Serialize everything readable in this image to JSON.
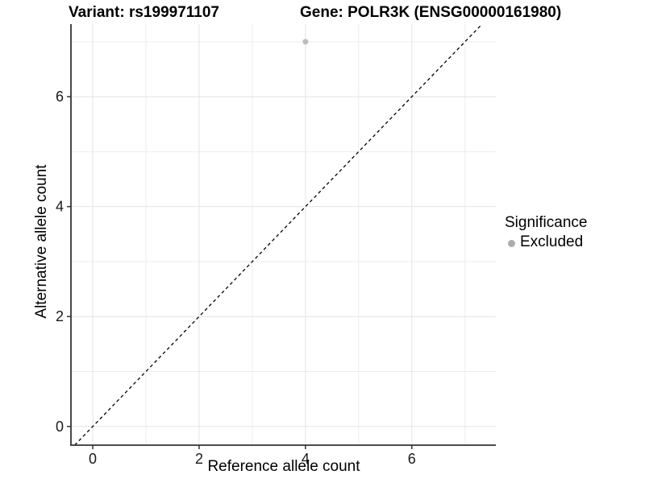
{
  "titles": {
    "variant": "Variant: rs199971107",
    "gene": "Gene: POLR3K (ENSG00000161980)"
  },
  "legend": {
    "title": "Significance",
    "items": [
      {
        "label": "Excluded",
        "color": "#adadad"
      }
    ]
  },
  "chart_data": {
    "type": "scatter",
    "title": "Variant: rs199971107   Gene: POLR3K (ENSG00000161980)",
    "xlabel": "Reference allele count",
    "ylabel": "Alternative allele count",
    "xlim": [
      -0.41,
      7.58
    ],
    "ylim": [
      -0.34,
      7.32
    ],
    "xticks": [
      0,
      2,
      4,
      6
    ],
    "yticks": [
      0,
      2,
      4,
      6
    ],
    "grid": {
      "major": [
        0,
        2,
        4,
        6
      ],
      "minor": [
        1,
        3,
        5,
        7
      ],
      "major_color": "#e3e3e3",
      "minor_color": "#ededed"
    },
    "axis_color": "#333333",
    "tick_label_color": "#1a1a1a",
    "series": [
      {
        "name": "Excluded",
        "color": "#bdbdbd",
        "points": [
          {
            "x": 4,
            "y": 7
          }
        ]
      }
    ],
    "reference_line": {
      "type": "identity y=x",
      "style": "dashed",
      "color": "#000000"
    },
    "legend_position": "right",
    "legend_title": "Significance"
  }
}
